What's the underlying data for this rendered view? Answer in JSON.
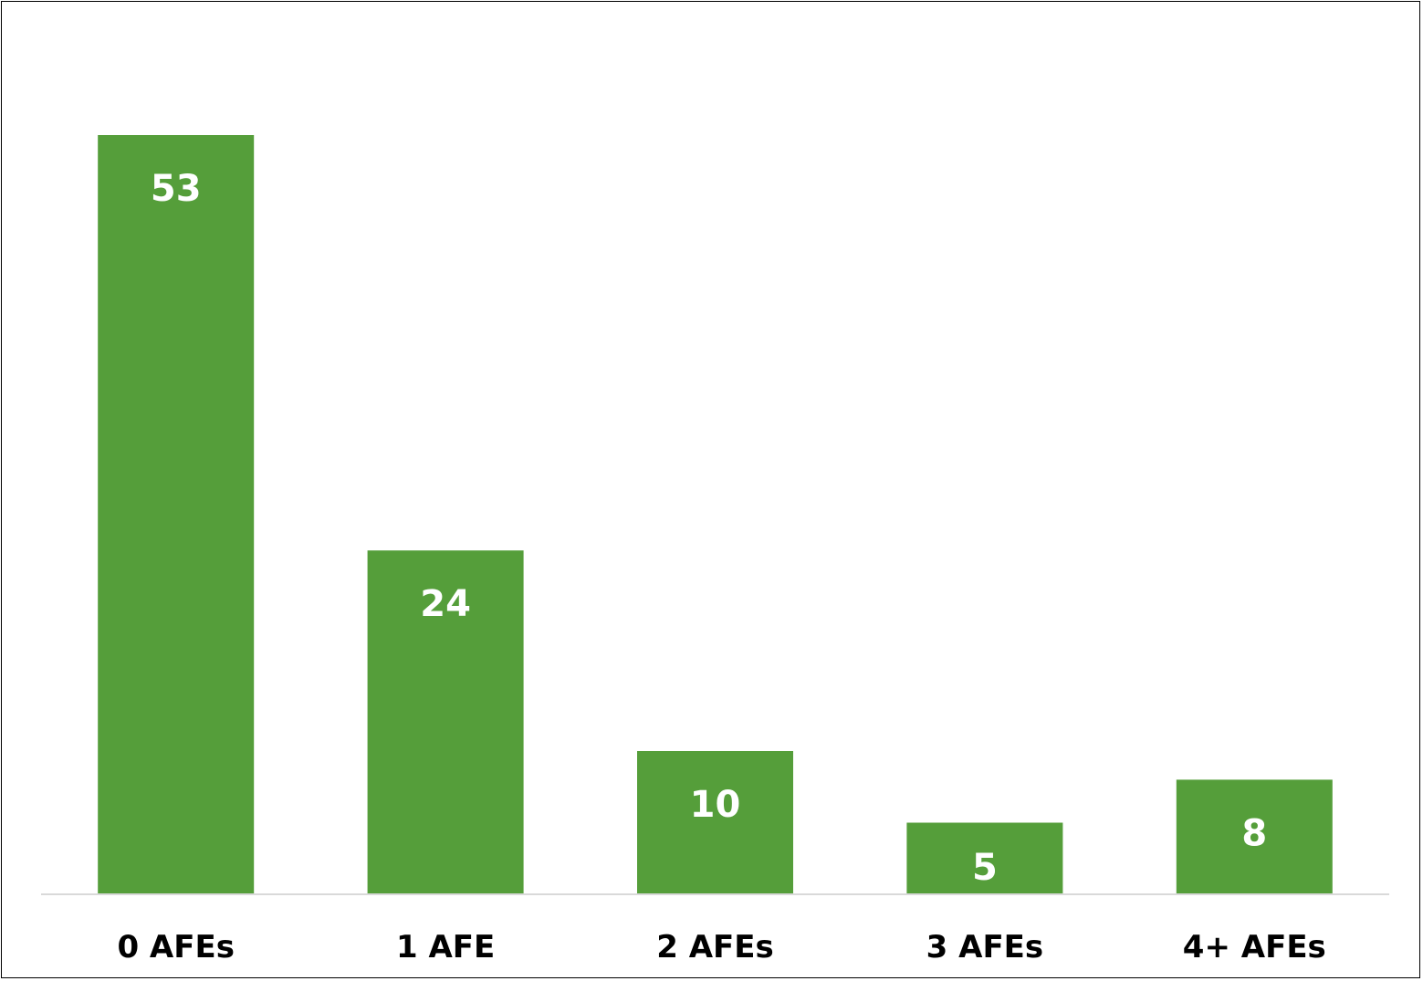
{
  "chart_data": {
    "type": "bar",
    "categories": [
      "0 AFEs",
      "1 AFE",
      "2 AFEs",
      "3 AFEs",
      "4+ AFEs"
    ],
    "values": [
      53,
      24,
      10,
      5,
      8
    ],
    "data_labels": [
      "53",
      "24",
      "10",
      "5",
      "8"
    ],
    "title": "",
    "xlabel": "",
    "ylabel": "",
    "ylim": [
      0,
      56
    ],
    "grid": false,
    "legend": "none",
    "colors": {
      "bar": "#559E3A",
      "bar_label": "#FFFFFF",
      "axis": "#D9D9D9",
      "tick_label": "#000000",
      "border": "#000000"
    }
  }
}
